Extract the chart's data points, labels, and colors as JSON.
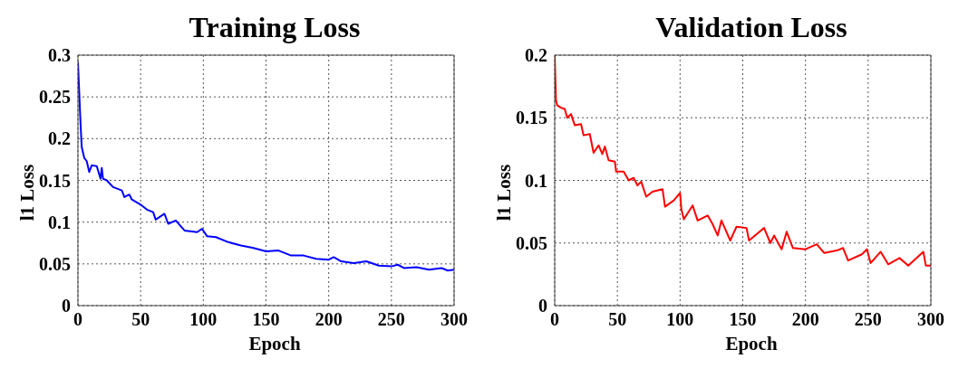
{
  "chart_data": [
    {
      "type": "line",
      "title": "Training Loss",
      "xlabel": "Epoch",
      "ylabel": "l1 Loss",
      "xlim": [
        0,
        300
      ],
      "xticks": [
        0,
        50,
        100,
        150,
        200,
        250,
        300
      ],
      "ylim": [
        0,
        0.3
      ],
      "yticks": [
        0,
        0.05,
        0.1,
        0.15,
        0.2,
        0.25,
        0.3
      ],
      "grid": true,
      "x": [
        0,
        2,
        3,
        5,
        7,
        9,
        11,
        15,
        18,
        19,
        20,
        23,
        28,
        35,
        37,
        41,
        43,
        50,
        55,
        60,
        62,
        69,
        72,
        78,
        85,
        95,
        99,
        103,
        110,
        120,
        130,
        140,
        150,
        160,
        170,
        180,
        190,
        200,
        204,
        210,
        220,
        230,
        240,
        250,
        255,
        260,
        270,
        280,
        290,
        295,
        300
      ],
      "series": [
        {
          "color": "#0000ff",
          "values": [
            0.292,
            0.22,
            0.19,
            0.177,
            0.173,
            0.16,
            0.168,
            0.167,
            0.152,
            0.165,
            0.152,
            0.15,
            0.142,
            0.138,
            0.13,
            0.133,
            0.127,
            0.121,
            0.115,
            0.112,
            0.103,
            0.11,
            0.098,
            0.102,
            0.09,
            0.088,
            0.092,
            0.083,
            0.082,
            0.076,
            0.072,
            0.069,
            0.065,
            0.066,
            0.06,
            0.06,
            0.056,
            0.055,
            0.058,
            0.053,
            0.051,
            0.053,
            0.048,
            0.047,
            0.049,
            0.045,
            0.046,
            0.043,
            0.045,
            0.042,
            0.043
          ]
        }
      ]
    },
    {
      "type": "line",
      "title": "Validation Loss",
      "xlabel": "Epoch",
      "ylabel": "l1 Loss",
      "xlim": [
        0,
        300
      ],
      "xticks": [
        0,
        50,
        100,
        150,
        200,
        250,
        300
      ],
      "ylim": [
        0,
        0.2
      ],
      "yticks": [
        0,
        0.05,
        0.1,
        0.15,
        0.2
      ],
      "grid": true,
      "x": [
        0,
        1,
        2,
        5,
        8,
        10,
        13,
        16,
        21,
        23,
        28,
        31,
        35,
        38,
        40,
        43,
        48,
        49,
        55,
        59,
        63,
        66,
        69,
        73,
        78,
        86,
        88,
        95,
        100,
        101,
        103,
        110,
        114,
        122,
        126,
        130,
        133,
        140,
        145,
        153,
        155,
        167,
        172,
        175,
        181,
        185,
        190,
        200,
        209,
        215,
        225,
        230,
        234,
        245,
        249,
        252,
        260,
        266,
        275,
        282,
        294,
        296,
        300
      ],
      "series": [
        {
          "color": "#ff0000",
          "values": [
            0.2,
            0.164,
            0.16,
            0.158,
            0.157,
            0.15,
            0.153,
            0.144,
            0.145,
            0.136,
            0.137,
            0.122,
            0.128,
            0.121,
            0.127,
            0.116,
            0.115,
            0.107,
            0.107,
            0.1,
            0.102,
            0.096,
            0.099,
            0.087,
            0.091,
            0.093,
            0.079,
            0.084,
            0.09,
            0.077,
            0.069,
            0.08,
            0.068,
            0.072,
            0.065,
            0.056,
            0.068,
            0.052,
            0.063,
            0.062,
            0.052,
            0.062,
            0.05,
            0.056,
            0.045,
            0.059,
            0.046,
            0.045,
            0.049,
            0.042,
            0.044,
            0.046,
            0.036,
            0.041,
            0.045,
            0.034,
            0.043,
            0.033,
            0.038,
            0.032,
            0.043,
            0.032,
            0.032
          ]
        }
      ]
    }
  ]
}
